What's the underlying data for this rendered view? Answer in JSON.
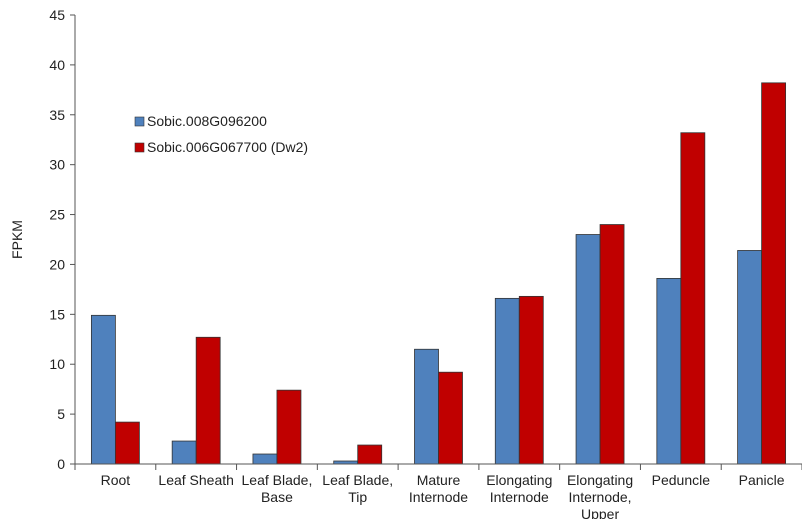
{
  "chart_data": {
    "type": "bar",
    "categories": [
      [
        "Root"
      ],
      [
        "Leaf Sheath"
      ],
      [
        "Leaf Blade,",
        "Base"
      ],
      [
        "Leaf Blade,",
        "Tip"
      ],
      [
        "Mature",
        "Internode"
      ],
      [
        "Elongating",
        "Internode"
      ],
      [
        "Elongating",
        "Internode,",
        "Upper"
      ],
      [
        "Peduncle"
      ],
      [
        "Panicle"
      ]
    ],
    "series": [
      {
        "name": "Sobic.008G096200",
        "color": "#4f81bd",
        "values": [
          14.9,
          2.3,
          1.0,
          0.3,
          11.5,
          16.6,
          23.0,
          18.6,
          21.4
        ]
      },
      {
        "name": "Sobic.006G067700 (Dw2)",
        "color": "#c00000",
        "values": [
          4.2,
          12.7,
          7.4,
          1.9,
          9.2,
          16.8,
          24.0,
          33.2,
          38.2
        ]
      }
    ],
    "title": "",
    "xlabel": "",
    "ylabel": "FPKM",
    "ylim": [
      0,
      45
    ],
    "yticks": [
      0,
      5,
      10,
      15,
      20,
      25,
      30,
      35,
      40,
      45
    ],
    "grid": false,
    "legend_position": "upper-left"
  }
}
